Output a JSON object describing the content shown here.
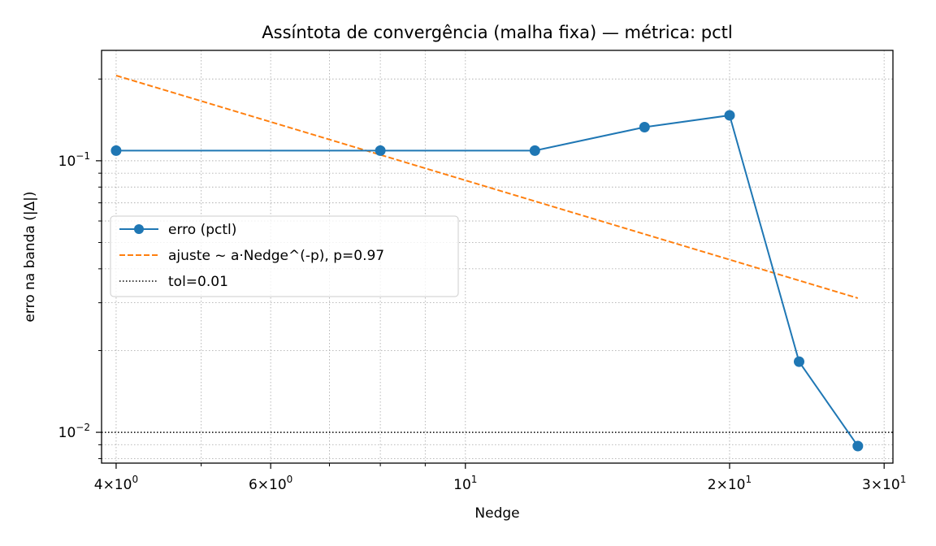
{
  "chart_data": {
    "type": "line",
    "title": "Assíntota de convergência (malha fixa) — métrica: pctl",
    "xlabel": "Nedge",
    "ylabel": "erro na banda (|Δ|)",
    "xscale": "log",
    "yscale": "log",
    "xlim": [
      3.85,
      30.7
    ],
    "ylim": [
      0.0077,
      0.255
    ],
    "grid": true,
    "grid_which": "both",
    "legend_position": "center-left",
    "x_major_ticks": [
      {
        "value": 4,
        "mantissa": "4",
        "exponent": "0"
      },
      {
        "value": 6,
        "mantissa": "6",
        "exponent": "0"
      },
      {
        "value": 10,
        "mantissa": "",
        "exponent": "1"
      },
      {
        "value": 20,
        "mantissa": "2",
        "exponent": "1"
      },
      {
        "value": 30,
        "mantissa": "3",
        "exponent": "1"
      }
    ],
    "y_major_ticks": [
      {
        "value": 0.1,
        "exponent": "−1"
      },
      {
        "value": 0.01,
        "exponent": "−2"
      }
    ],
    "series": [
      {
        "name": "erro (pctl)",
        "style": "solid-marker",
        "color": "#1f77b4",
        "x": [
          4,
          8,
          12,
          16,
          20,
          24,
          28
        ],
        "y": [
          0.109,
          0.109,
          0.109,
          0.133,
          0.147,
          0.0182,
          0.0089
        ]
      },
      {
        "name": "ajuste ~ a·Nedge^(-p), p=0.97",
        "style": "dashed",
        "color": "#ff7f0e",
        "x": [
          4,
          28
        ],
        "y": [
          0.206,
          0.0312
        ]
      },
      {
        "name": "tol=0.01",
        "style": "dotted-hline",
        "color": "#000000",
        "y": 0.01
      }
    ]
  }
}
